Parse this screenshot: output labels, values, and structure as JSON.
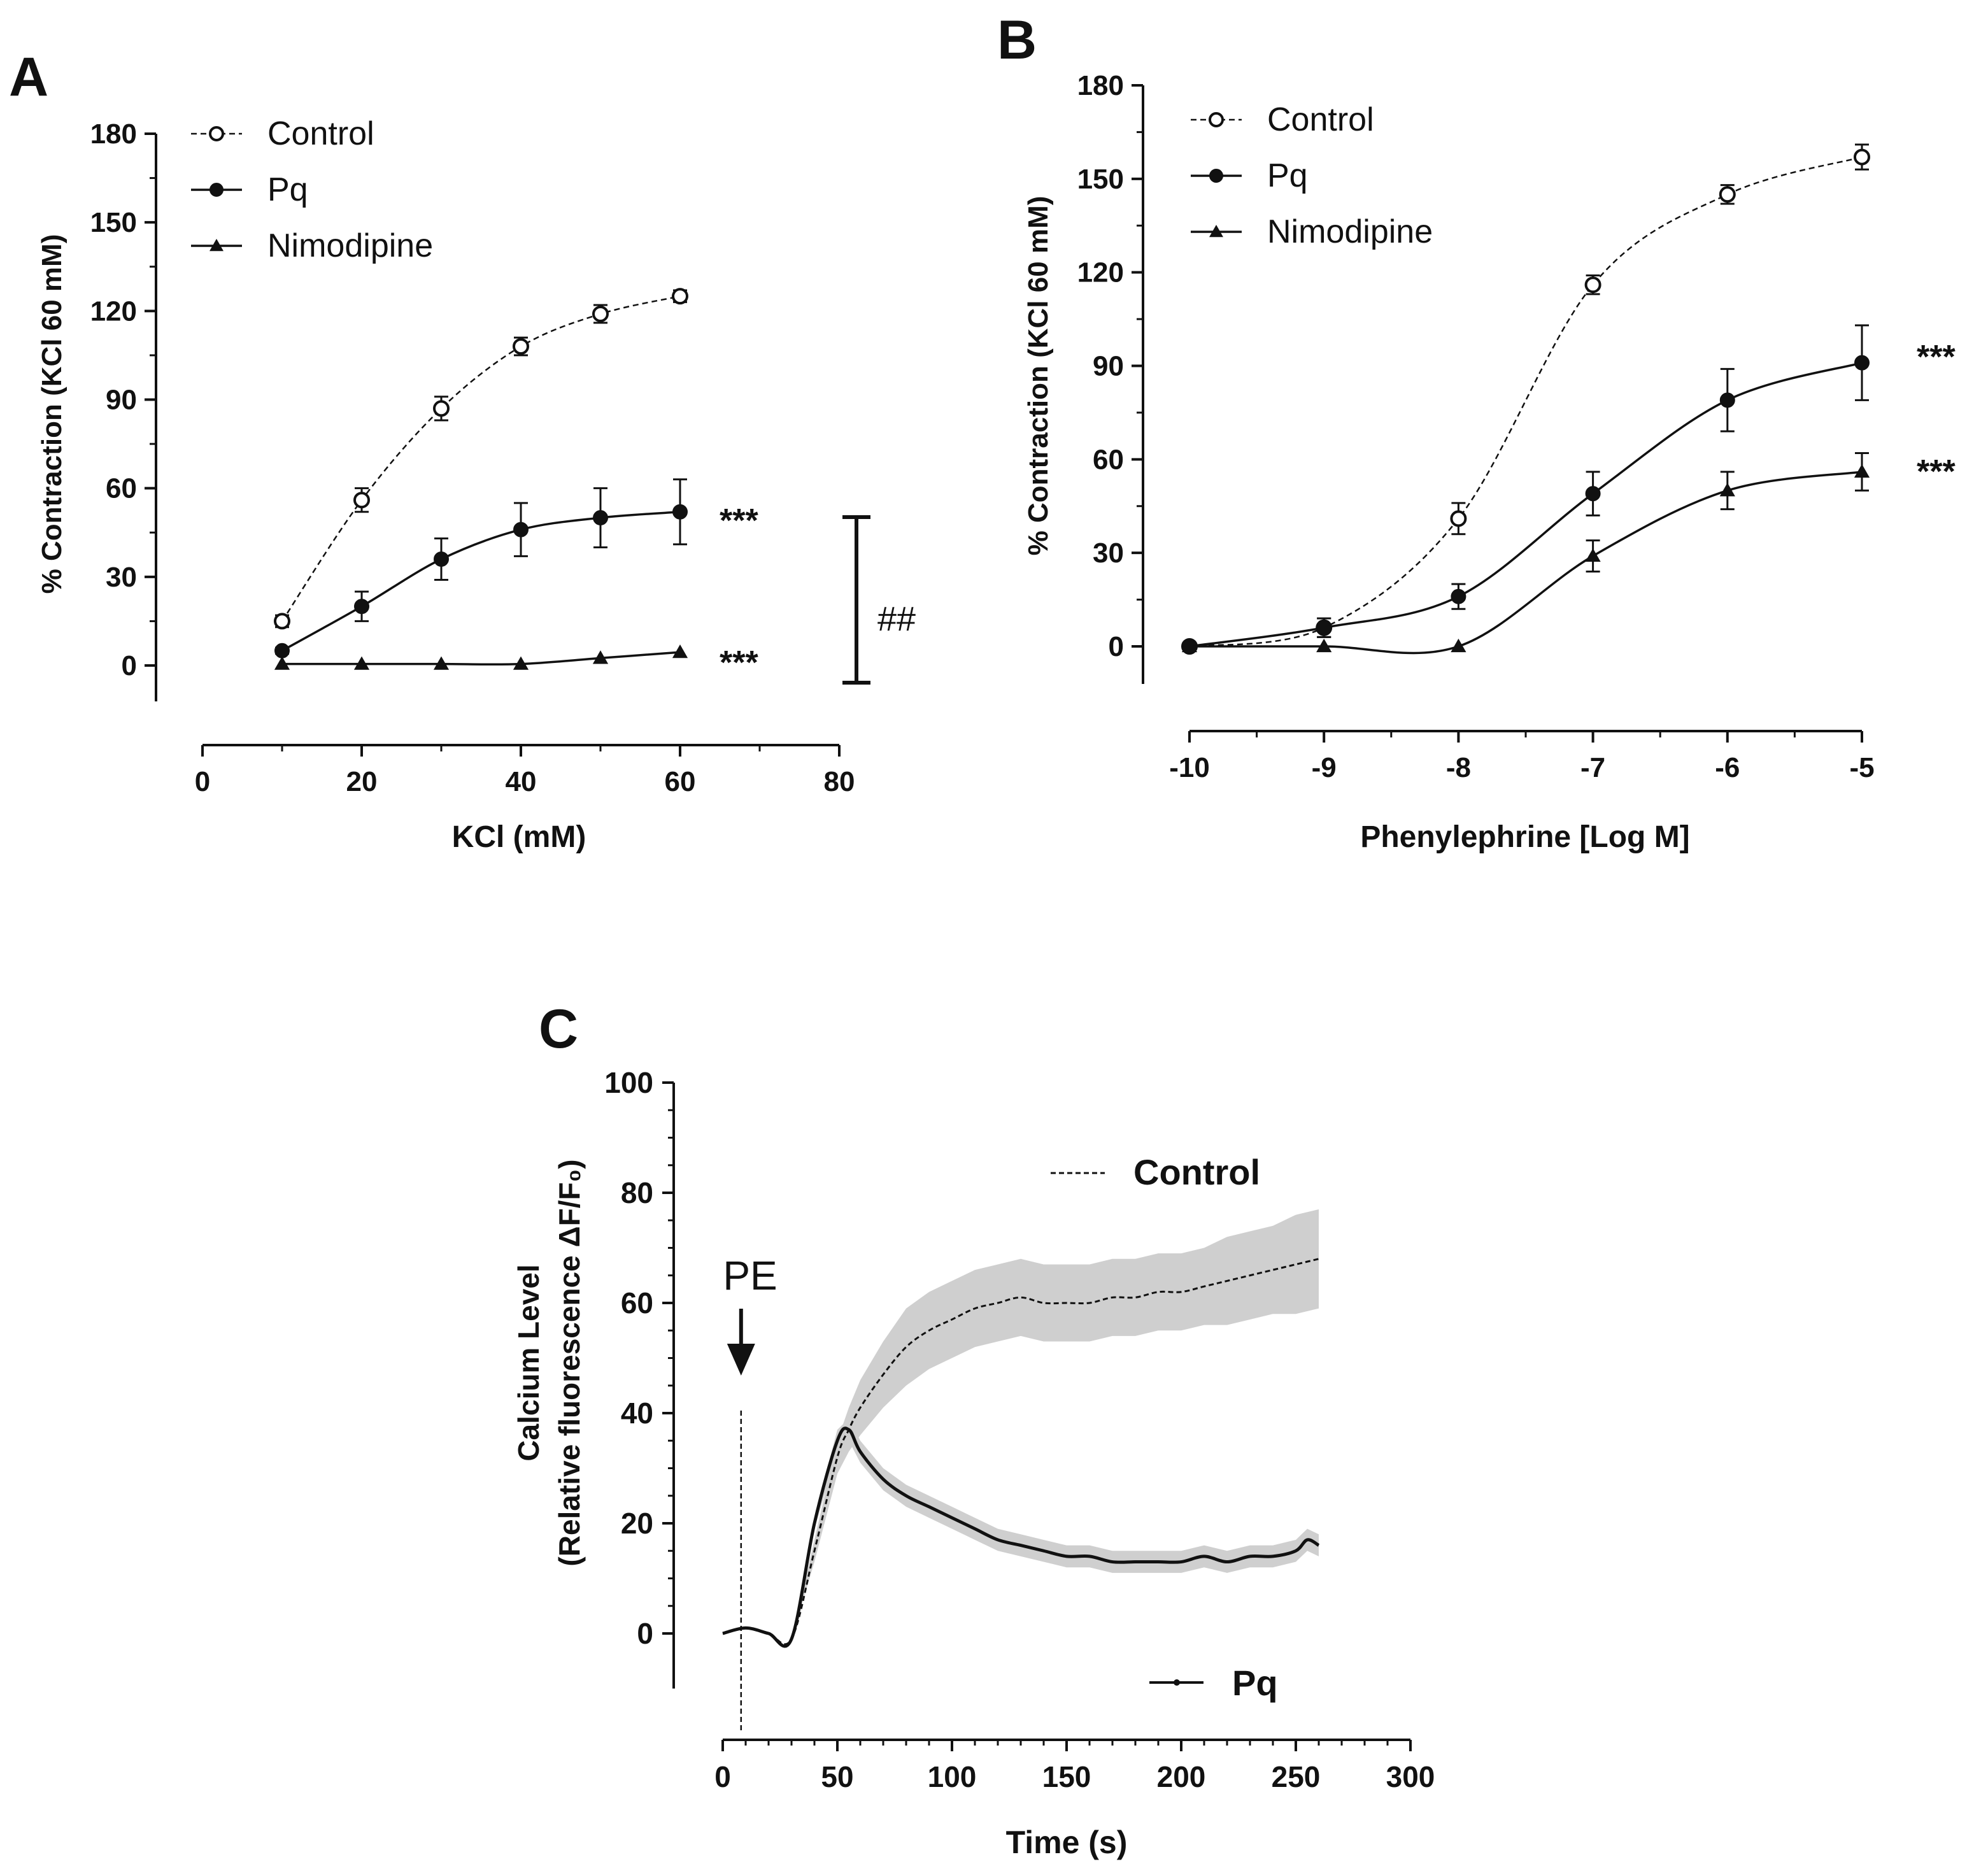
{
  "chart_data": [
    {
      "panel": "A",
      "type": "line",
      "xlabel": "KCl (mM)",
      "ylabel": "% Contraction (KCl 60 mM)",
      "xlim": [
        0,
        80
      ],
      "ylim": [
        -10,
        180
      ],
      "xticks": [
        "0",
        "20",
        "40",
        "60",
        "80"
      ],
      "yticks": [
        "0",
        "30",
        "60",
        "90",
        "120",
        "150",
        "180"
      ],
      "legend": [
        "Control",
        "Pq",
        "Nimodipine"
      ],
      "series": [
        {
          "name": "Control",
          "marker": "open-circle",
          "dash": true,
          "x": [
            10,
            20,
            30,
            40,
            50,
            60
          ],
          "y": [
            15,
            56,
            87,
            108,
            119,
            125
          ],
          "err": [
            2,
            4,
            4,
            3,
            3,
            2
          ]
        },
        {
          "name": "Pq",
          "marker": "filled-circle",
          "dash": false,
          "x": [
            10,
            20,
            30,
            40,
            50,
            60
          ],
          "y": [
            5,
            20,
            36,
            46,
            50,
            52
          ],
          "err": [
            1,
            5,
            7,
            9,
            10,
            11
          ]
        },
        {
          "name": "Nimodipine",
          "marker": "triangle",
          "dash": false,
          "x": [
            10,
            20,
            30,
            40,
            50,
            60
          ],
          "y": [
            0.5,
            0.5,
            0.5,
            0.5,
            2.5,
            4.5
          ],
          "err": [
            0,
            0,
            0,
            0,
            0,
            0
          ]
        }
      ],
      "annotations": {
        "pq_sig": "***",
        "nimo_sig": "***",
        "bracket": "##",
        "bracket_range": [
          50,
          -6
        ]
      }
    },
    {
      "panel": "B",
      "type": "line",
      "xlabel": "Phenylephrine [Log M]",
      "ylabel": "% Contraction (KCl 60 mM)",
      "xlim": [
        -10,
        -5
      ],
      "ylim": [
        -10,
        180
      ],
      "xticks": [
        "-10",
        "-9",
        "-8",
        "-7",
        "-6",
        "-5"
      ],
      "yticks": [
        "0",
        "30",
        "60",
        "90",
        "120",
        "150",
        "180"
      ],
      "legend": [
        "Control",
        "Pq",
        "Nimodipine"
      ],
      "series": [
        {
          "name": "Control",
          "marker": "open-circle",
          "dash": true,
          "x": [
            -10,
            -9,
            -8,
            -7,
            -6,
            -5
          ],
          "y": [
            0,
            6,
            41,
            116,
            145,
            157
          ],
          "err": [
            0,
            3,
            5,
            3,
            3,
            4
          ]
        },
        {
          "name": "Pq",
          "marker": "filled-circle",
          "dash": false,
          "x": [
            -10,
            -9,
            -8,
            -7,
            -6,
            -5
          ],
          "y": [
            0,
            6,
            16,
            49,
            79,
            91
          ],
          "err": [
            0,
            3,
            4,
            7,
            10,
            12
          ]
        },
        {
          "name": "Nimodipine",
          "marker": "triangle",
          "dash": false,
          "x": [
            -10,
            -9,
            -8,
            -7,
            -6,
            -5
          ],
          "y": [
            0,
            0,
            0,
            29,
            50,
            56
          ],
          "err": [
            0,
            0,
            0,
            5,
            6,
            6
          ]
        }
      ],
      "annotations": {
        "pq_sig": "***",
        "nimo_sig": "***"
      }
    },
    {
      "panel": "C",
      "type": "line",
      "xlabel": "Time (s)",
      "ylabel_line1": "Calcium Level",
      "ylabel_line2": "(Relative fluorescence ΔF/F₀)",
      "xlim": [
        0,
        300
      ],
      "ylim": [
        -10,
        100
      ],
      "xticks": [
        "0",
        "50",
        "100",
        "150",
        "200",
        "250",
        "300"
      ],
      "yticks": [
        "0",
        "20",
        "40",
        "60",
        "80",
        "100"
      ],
      "legend": [
        "Control",
        "Pq"
      ],
      "stimulus": {
        "label": "PE",
        "x": 8
      },
      "series": [
        {
          "name": "Control",
          "dash": true,
          "x": [
            0,
            10,
            20,
            30,
            40,
            50,
            55,
            60,
            70,
            80,
            90,
            100,
            110,
            120,
            130,
            140,
            150,
            160,
            170,
            180,
            190,
            200,
            210,
            220,
            230,
            240,
            250,
            260
          ],
          "y": [
            0,
            1,
            0,
            -1,
            15,
            32,
            37,
            41,
            47,
            52,
            55,
            57,
            59,
            60,
            61,
            60,
            60,
            60,
            61,
            61,
            62,
            62,
            63,
            64,
            65,
            66,
            67,
            68
          ],
          "err": [
            0,
            0,
            0,
            0,
            2,
            3,
            4,
            5,
            6,
            7,
            7,
            7,
            7,
            7,
            7,
            7,
            7,
            7,
            7,
            7,
            7,
            7,
            7,
            8,
            8,
            8,
            9,
            9
          ]
        },
        {
          "name": "Pq",
          "dash": false,
          "x": [
            0,
            10,
            20,
            30,
            40,
            50,
            55,
            60,
            70,
            80,
            90,
            100,
            110,
            120,
            130,
            140,
            150,
            160,
            170,
            180,
            190,
            200,
            210,
            220,
            230,
            240,
            250,
            255,
            260
          ],
          "y": [
            0,
            1,
            0,
            -1,
            20,
            35,
            37,
            33,
            28,
            25,
            23,
            21,
            19,
            17,
            16,
            15,
            14,
            14,
            13,
            13,
            13,
            13,
            14,
            13,
            14,
            14,
            15,
            17,
            16
          ],
          "err": [
            0,
            0,
            0,
            0,
            1,
            2,
            2,
            2,
            2,
            2,
            2,
            2,
            2,
            2,
            2,
            2,
            2,
            2,
            2,
            2,
            2,
            2,
            2,
            2,
            2,
            2,
            2,
            2,
            2
          ]
        }
      ]
    }
  ]
}
